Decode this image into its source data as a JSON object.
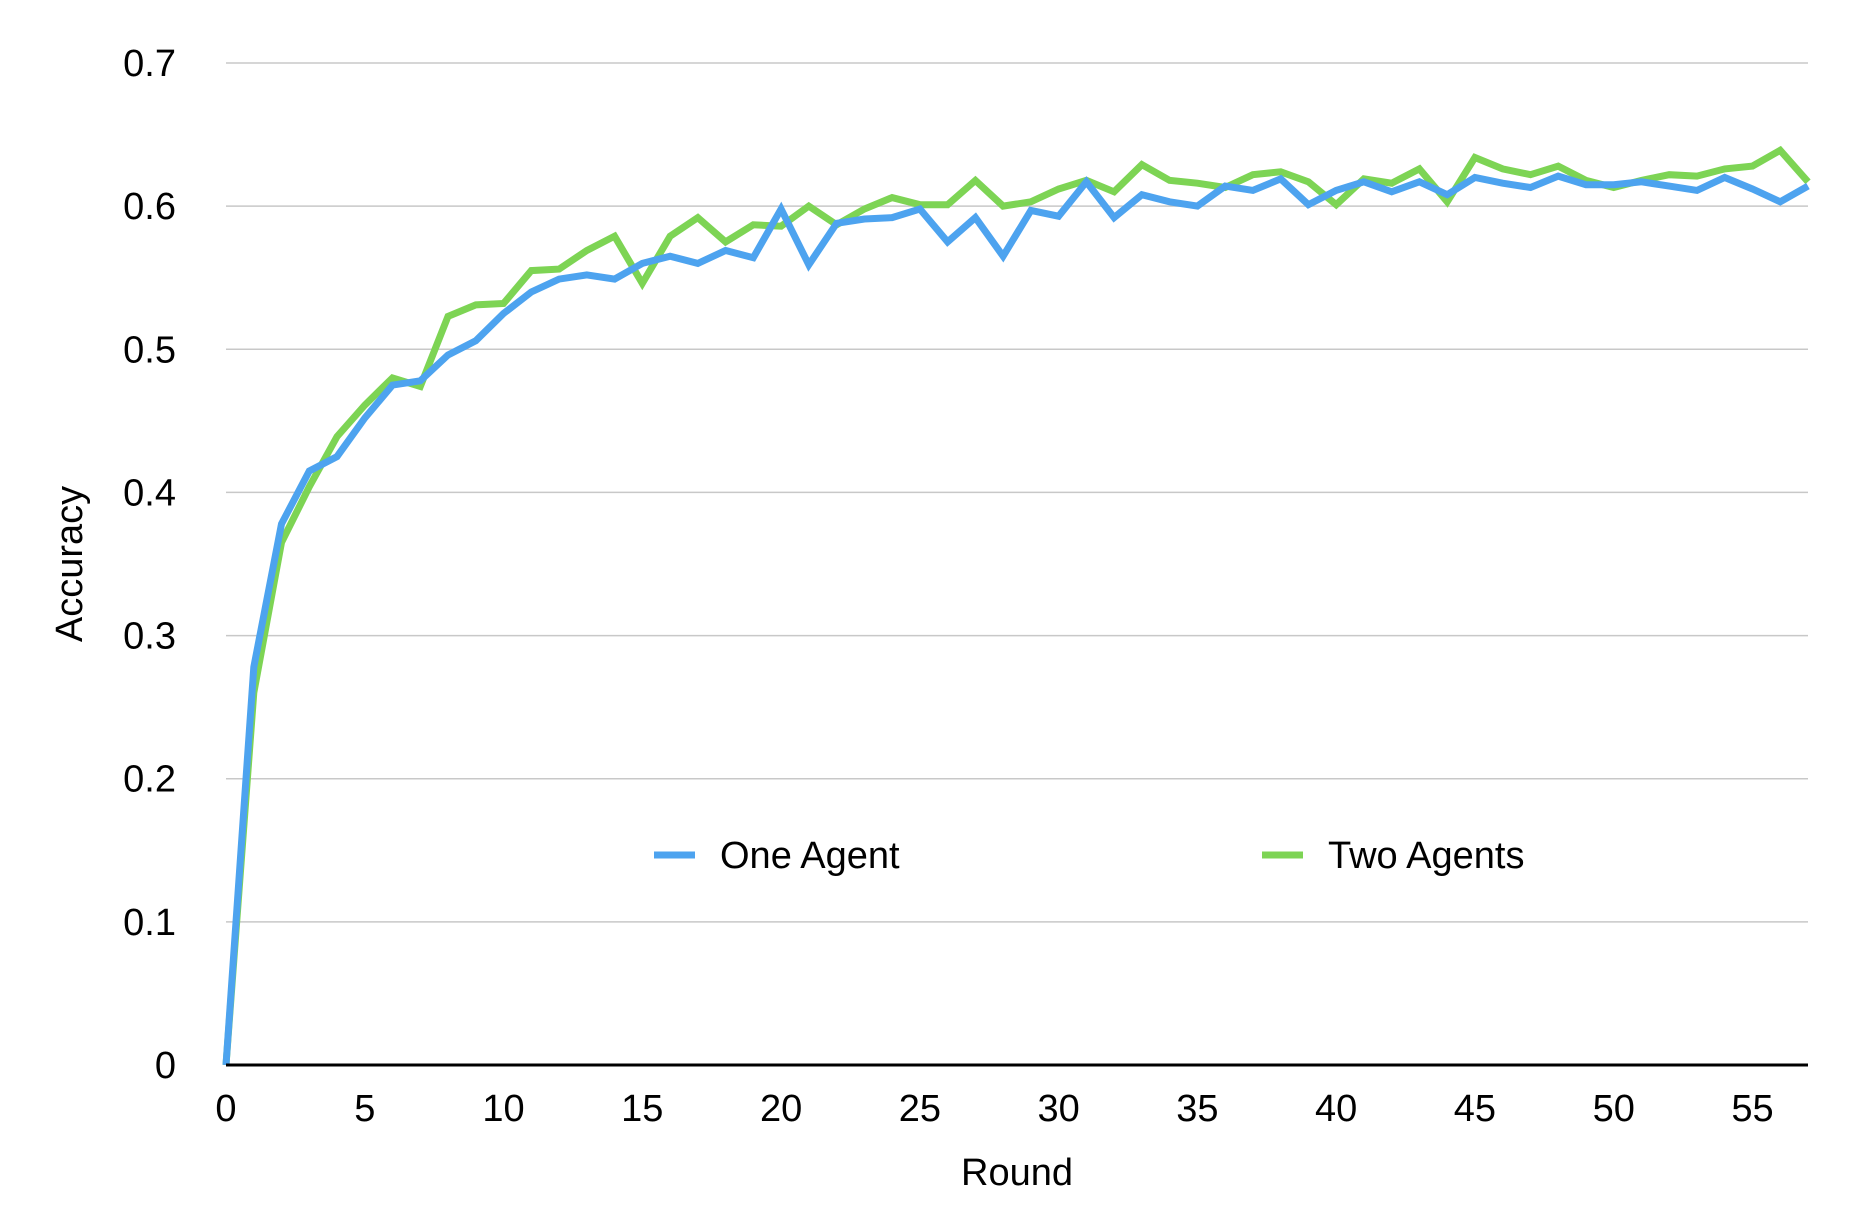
{
  "chart_data": {
    "type": "line",
    "title": "",
    "xlabel": "Round",
    "ylabel": "Accuracy",
    "xlim": [
      0,
      57
    ],
    "ylim": [
      0,
      0.7
    ],
    "xticks": [
      0,
      5,
      10,
      15,
      20,
      25,
      30,
      35,
      40,
      45,
      50,
      55
    ],
    "yticks": [
      0,
      0.1,
      0.2,
      0.3,
      0.4,
      0.5,
      0.6,
      0.7
    ],
    "xtick_labels": [
      "0",
      "5",
      "10",
      "15",
      "20",
      "25",
      "30",
      "35",
      "40",
      "45",
      "50",
      "55"
    ],
    "ytick_labels": [
      "0",
      "0.1",
      "0.2",
      "0.3",
      "0.4",
      "0.5",
      "0.6",
      "0.7"
    ],
    "grid": "horizontal",
    "legend_position": "inside-lower-center",
    "x": [
      0,
      1,
      2,
      3,
      4,
      5,
      6,
      7,
      8,
      9,
      10,
      11,
      12,
      13,
      14,
      15,
      16,
      17,
      18,
      19,
      20,
      21,
      22,
      23,
      24,
      25,
      26,
      27,
      28,
      29,
      30,
      31,
      32,
      33,
      34,
      35,
      36,
      37,
      38,
      39,
      40,
      41,
      42,
      43,
      44,
      45,
      46,
      47,
      48,
      49,
      50,
      51,
      52,
      53,
      54,
      55,
      56,
      57
    ],
    "series": [
      {
        "name": "One Agent",
        "color": "#4da3ef",
        "values": [
          0,
          0.278,
          0.378,
          0.415,
          0.425,
          0.452,
          0.475,
          0.478,
          0.496,
          0.506,
          0.525,
          0.54,
          0.549,
          0.552,
          0.549,
          0.56,
          0.565,
          0.56,
          0.569,
          0.564,
          0.598,
          0.559,
          0.588,
          0.591,
          0.592,
          0.598,
          0.575,
          0.592,
          0.565,
          0.597,
          0.593,
          0.617,
          0.592,
          0.608,
          0.603,
          0.6,
          0.614,
          0.611,
          0.619,
          0.601,
          0.611,
          0.617,
          0.61,
          0.617,
          0.608,
          0.62,
          0.616,
          0.613,
          0.621,
          0.615,
          0.615,
          0.617,
          0.614,
          0.611,
          0.62,
          0.612,
          0.603,
          0.614
        ]
      },
      {
        "name": "Two Agents",
        "color": "#7dd454",
        "values": [
          0,
          0.26,
          0.365,
          0.404,
          0.439,
          0.461,
          0.48,
          0.474,
          0.523,
          0.531,
          0.532,
          0.555,
          0.556,
          0.569,
          0.579,
          0.546,
          0.579,
          0.592,
          0.575,
          0.587,
          0.586,
          0.6,
          0.587,
          0.598,
          0.606,
          0.601,
          0.601,
          0.618,
          0.6,
          0.603,
          0.612,
          0.618,
          0.61,
          0.629,
          0.618,
          0.616,
          0.613,
          0.622,
          0.624,
          0.617,
          0.601,
          0.619,
          0.616,
          0.626,
          0.603,
          0.634,
          0.626,
          0.622,
          0.628,
          0.618,
          0.613,
          0.618,
          0.622,
          0.621,
          0.626,
          0.628,
          0.639,
          0.617
        ]
      }
    ]
  }
}
